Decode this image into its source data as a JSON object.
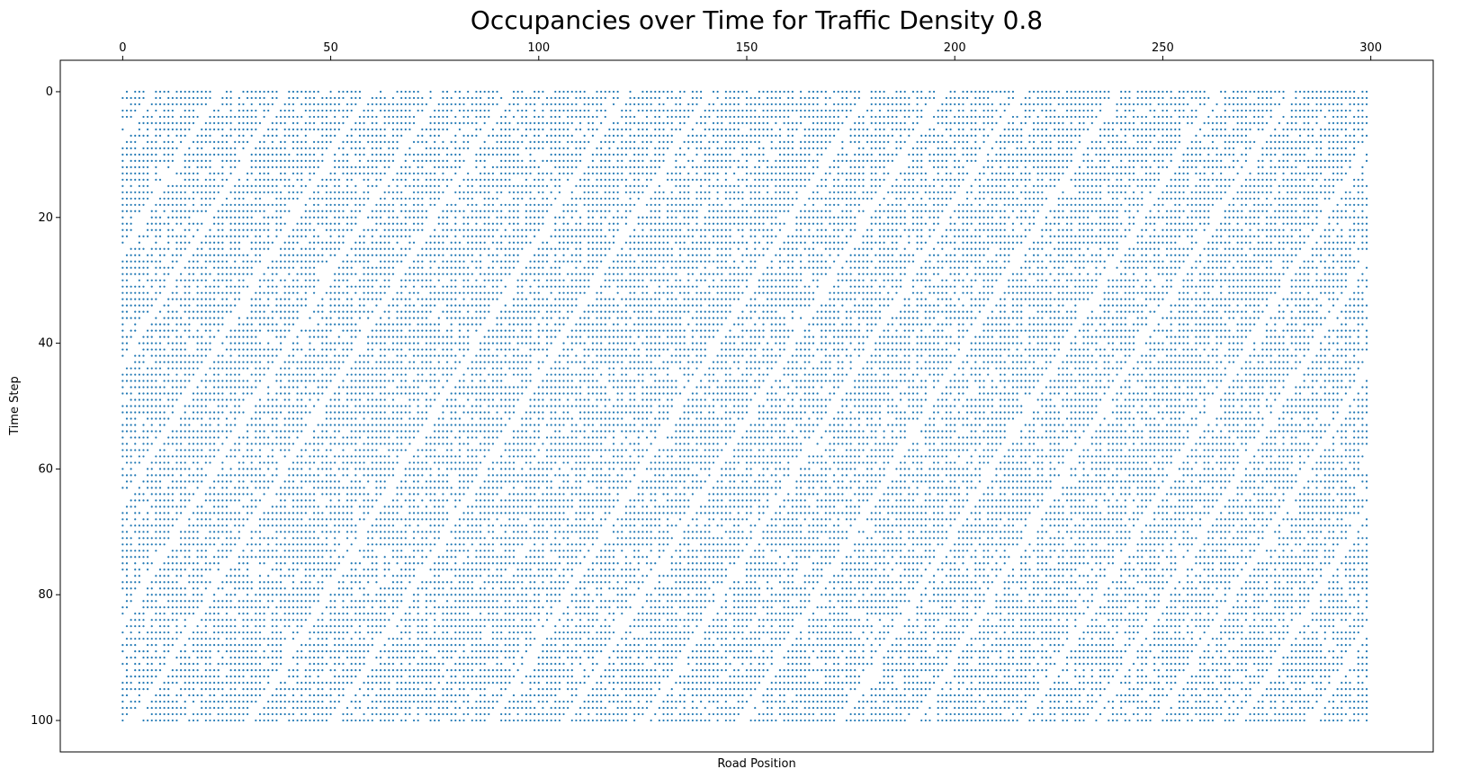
{
  "chart_data": {
    "type": "scatter",
    "title": "Occupancies over Time for Traffic Density 0.8",
    "xlabel": "Road Position",
    "ylabel": "Time Step",
    "x_ticks": [
      0,
      50,
      100,
      150,
      200,
      250,
      300
    ],
    "y_ticks": [
      0,
      20,
      40,
      60,
      80,
      100
    ],
    "x_tick_labels": [
      "0",
      "50",
      "100",
      "150",
      "200",
      "250",
      "300"
    ],
    "y_tick_labels": [
      "0",
      "20",
      "40",
      "60",
      "80",
      "100"
    ],
    "xlim": [
      -15,
      315
    ],
    "ylim": [
      105,
      -5
    ],
    "y_axis_inverted": true,
    "x_axis_position": "top",
    "grid": false,
    "road_length": 300,
    "time_steps": 101,
    "density": 0.8,
    "marker_color": "#1f77b4",
    "marker": "small dot",
    "series": [
      {
        "description": "Each point is an occupied road cell at a given time step; vacancies drift backwards (to the left) over time, forming diagonal jam lines.",
        "points_estimated": true
      }
    ]
  }
}
